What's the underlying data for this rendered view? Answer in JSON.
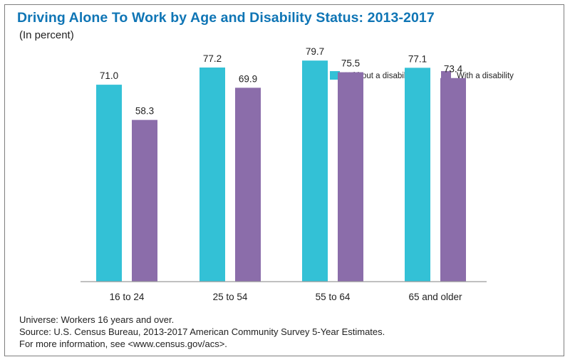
{
  "title": "Driving Alone To Work by Age and Disability Status: 2013-2017",
  "subtitle": "(In percent)",
  "colors": {
    "without_disability": "#33c1d6",
    "with_disability": "#8b6daa",
    "title": "#0f75b5"
  },
  "chart_data": {
    "type": "bar",
    "categories": [
      "16 to 24",
      "25 to 54",
      "55 to 64",
      "65 and older"
    ],
    "series": [
      {
        "name": "Without a disability",
        "values": [
          71.0,
          77.2,
          79.7,
          77.1
        ],
        "labels": [
          "71.0",
          "77.2",
          "79.7",
          "77.1"
        ]
      },
      {
        "name": "With a disability",
        "values": [
          58.3,
          69.9,
          75.5,
          73.4
        ],
        "labels": [
          "58.3",
          "69.9",
          "75.5",
          "73.4"
        ]
      }
    ],
    "ylim": [
      0,
      100
    ],
    "legend_position": "top-right",
    "grid": false
  },
  "notes": {
    "universe": "Universe: Workers 16 years and over.",
    "source": "Source: U.S. Census Bureau, 2013-2017 American Community Survey 5-Year Estimates.",
    "more_info": "For more information, see <www.census.gov/acs>."
  }
}
